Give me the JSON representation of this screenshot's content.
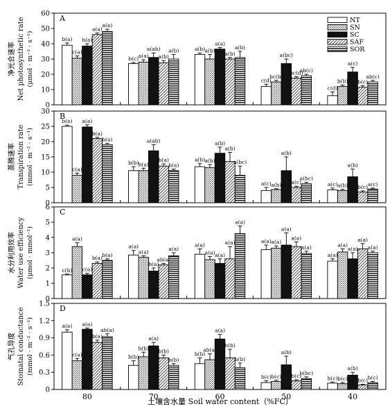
{
  "figure": {
    "xlabel": "土壤含水量 Soil water content（%FC）",
    "categories": [
      "80",
      "70",
      "60",
      "50",
      "40"
    ],
    "legend": {
      "placement": "top-right",
      "entries": [
        {
          "name": "NT",
          "pattern": "white"
        },
        {
          "name": "SN",
          "pattern": "dots"
        },
        {
          "name": "SC",
          "pattern": "black"
        },
        {
          "name": "SAF",
          "pattern": "diagonal"
        },
        {
          "name": "SOR",
          "pattern": "horizontal"
        }
      ]
    }
  },
  "chart_data": [
    {
      "type": "bar",
      "panel": "A",
      "ylabel_cn": "净光合速率",
      "ylabel_en": "Net photosynthetic rate",
      "ylabel_unit": "(μmol · m⁻² · s⁻¹)",
      "ylim": [
        0,
        60
      ],
      "yticks": [
        0,
        10,
        20,
        30,
        40,
        50,
        60
      ],
      "categories": [
        "80",
        "70",
        "60",
        "50",
        "40"
      ],
      "series": [
        {
          "name": "NT",
          "values": [
            39,
            27,
            33,
            12,
            6
          ],
          "errors": [
            1.5,
            0.7,
            1,
            1.5,
            2.5
          ],
          "labels": [
            "b(a)",
            "b(c)",
            "a(b)",
            "c(d)",
            "c(d)"
          ]
        },
        {
          "name": "SN",
          "values": [
            30.5,
            28,
            30,
            15,
            12
          ],
          "errors": [
            1.5,
            1.5,
            3,
            1,
            1
          ],
          "labels": [
            "c(a)",
            "a(a)",
            "a(b)",
            "bc(b)",
            "b(b)"
          ]
        },
        {
          "name": "SC",
          "values": [
            38.5,
            31,
            36.5,
            27,
            21.5
          ],
          "errors": [
            1.5,
            3,
            1,
            3,
            3
          ],
          "labels": [
            "b(a)",
            "a(ab)",
            "a(a)",
            "a(bc)",
            "a(c)"
          ]
        },
        {
          "name": "SAF",
          "values": [
            46,
            27.5,
            30,
            17.5,
            11.5
          ],
          "errors": [
            1,
            1.5,
            1,
            1,
            1
          ],
          "labels": [
            "a(a)",
            "a(b)",
            "a(b)",
            "bc(d)",
            "b(c)"
          ]
        },
        {
          "name": "SOR",
          "values": [
            48,
            30,
            31,
            19,
            15
          ],
          "errors": [
            1.5,
            3,
            4,
            1,
            1
          ],
          "labels": [
            "a(a)",
            "a(b)",
            "a(b)",
            "ab(c)",
            "ab(c)"
          ]
        }
      ]
    },
    {
      "type": "bar",
      "panel": "B",
      "ylabel_cn": "蒸腾速率",
      "ylabel_en": "Transpiration rate",
      "ylabel_unit": "(mmol · m⁻² · s⁻¹)",
      "ylim": [
        0,
        30
      ],
      "yticks": [
        0,
        5,
        10,
        15,
        20,
        25,
        30
      ],
      "categories": [
        "80",
        "70",
        "60",
        "50",
        "40"
      ],
      "series": [
        {
          "name": "NT",
          "values": [
            25,
            10.5,
            11.8,
            4,
            4.2
          ],
          "errors": [
            0.4,
            1.3,
            1,
            1,
            0.6
          ],
          "labels": [
            "b(a)",
            "b(b)",
            "a(b)",
            "a(c)",
            "a(c)"
          ]
        },
        {
          "name": "SN",
          "values": [
            9,
            10.5,
            11.5,
            4.3,
            4
          ],
          "errors": [
            0.7,
            0.8,
            1,
            0.3,
            0.4
          ],
          "labels": [
            "c(a)",
            "b(a)",
            "a(b)",
            "a(b)",
            "a(b)"
          ]
        },
        {
          "name": "SC",
          "values": [
            24.8,
            17,
            16.2,
            10.5,
            8.5
          ],
          "errors": [
            0.7,
            2,
            2,
            4.5,
            2.5
          ],
          "labels": [
            "a(a)",
            "a(ab)",
            "a(b)",
            "a(b)",
            "a(b)"
          ]
        },
        {
          "name": "SAF",
          "values": [
            21,
            12,
            13.5,
            5,
            3.5
          ],
          "errors": [
            0.4,
            0.7,
            3,
            0.4,
            0.4
          ],
          "labels": [
            "b(a)",
            "b(a)",
            "a(b)",
            "a(c)",
            "b(c)"
          ]
        },
        {
          "name": "SOR",
          "values": [
            19,
            10.5,
            9,
            6.2,
            4.5
          ],
          "errors": [
            0.4,
            0.5,
            3,
            0.5,
            0.3
          ],
          "labels": [
            "b(a)",
            "b(a)",
            "a(bc)",
            "a(bc)",
            "a(c)"
          ]
        }
      ]
    },
    {
      "type": "bar",
      "panel": "C",
      "ylabel_cn": "水分利用效率",
      "ylabel_en": "Water use efficiency",
      "ylabel_unit": "(μmol · mmol⁻¹)",
      "ylim": [
        0,
        6
      ],
      "yticks": [
        0,
        1,
        2,
        3,
        4,
        5,
        6
      ],
      "categories": [
        "80",
        "70",
        "60",
        "50",
        "40"
      ],
      "series": [
        {
          "name": "NT",
          "values": [
            1.55,
            2.85,
            2.9,
            3.2,
            2.45
          ],
          "errors": [
            0.05,
            0.3,
            0.35,
            0.3,
            0.15
          ],
          "labels": [
            "c(b)",
            "a(a)",
            "a(a)",
            "a(a)",
            "a(a)"
          ]
        },
        {
          "name": "SN",
          "values": [
            3.4,
            2.7,
            2.55,
            3.3,
            3.05
          ],
          "errors": [
            0.25,
            0.1,
            0.2,
            0.15,
            0.2
          ],
          "labels": [
            "a(a)",
            "a(a)",
            "a(a)",
            "a(a)",
            "a(a)"
          ]
        },
        {
          "name": "SC",
          "values": [
            1.55,
            1.8,
            2.3,
            3.5,
            2.6
          ],
          "errors": [
            0.1,
            0.2,
            0.3,
            0.8,
            0.4
          ],
          "labels": [
            "c(a)",
            "b(a)",
            "a(a)",
            "a(a)",
            "a(a)"
          ]
        },
        {
          "name": "SAF",
          "values": [
            2.3,
            2.2,
            2.6,
            3.4,
            3.25
          ],
          "errors": [
            0.1,
            0.1,
            0.8,
            0.3,
            0.35
          ],
          "labels": [
            "b(a)",
            "ab(a)",
            "a(a)",
            "a(a)",
            "a(a)"
          ]
        },
        {
          "name": "SOR",
          "values": [
            2.5,
            2.8,
            4.25,
            2.95,
            3.0
          ],
          "errors": [
            0.1,
            0.2,
            0.5,
            0.15,
            0.1
          ],
          "labels": [
            "b(a)",
            "a(a)",
            "a(a)",
            "a(a)",
            "a(a)"
          ]
        }
      ]
    },
    {
      "type": "bar",
      "panel": "D",
      "ylabel_cn": "气孔导度",
      "ylabel_en": "Stomatal conductance",
      "ylabel_unit": "(mmol · m⁻² · s⁻¹)",
      "ylim": [
        0,
        1.5
      ],
      "yticks": [
        0,
        0.3,
        0.6,
        0.9,
        1.2,
        1.5
      ],
      "categories": [
        "80",
        "70",
        "60",
        "50",
        "40"
      ],
      "series": [
        {
          "name": "NT",
          "values": [
            1.0,
            0.42,
            0.45,
            0.12,
            0.11
          ],
          "errors": [
            0.04,
            0.08,
            0.1,
            0.03,
            0.02
          ],
          "labels": [
            "a(a)",
            "b(b)",
            "b(b)",
            "b(c)",
            "b(c)"
          ]
        },
        {
          "name": "SN",
          "values": [
            0.5,
            0.57,
            0.52,
            0.14,
            0.1
          ],
          "errors": [
            0.04,
            0.08,
            0.1,
            0.02,
            0.02
          ],
          "labels": [
            "c(a)",
            "b(b)",
            "ab(a)",
            "b(c)",
            "b(c)"
          ]
        },
        {
          "name": "SC",
          "values": [
            1.05,
            0.76,
            0.88,
            0.43,
            0.25
          ],
          "errors": [
            0.02,
            0.06,
            0.08,
            0.15,
            0.05
          ],
          "labels": [
            "a(a)",
            "a(a)",
            "a(a)",
            "a(b)",
            "a(b)"
          ]
        },
        {
          "name": "SAF",
          "values": [
            0.82,
            0.55,
            0.55,
            0.15,
            0.08
          ],
          "errors": [
            0.04,
            0.05,
            0.15,
            0.02,
            0.01
          ],
          "labels": [
            "b(a)",
            "b(b)",
            "b(b)",
            "b(c)",
            "b(c)"
          ]
        },
        {
          "name": "SOR",
          "values": [
            0.92,
            0.42,
            0.38,
            0.19,
            0.12
          ],
          "errors": [
            0.05,
            0.03,
            0.08,
            0.03,
            0.02
          ],
          "labels": [
            "ab(a)",
            "b(b)",
            "b(b)",
            "b(bc)",
            "b(c)"
          ]
        }
      ]
    }
  ]
}
